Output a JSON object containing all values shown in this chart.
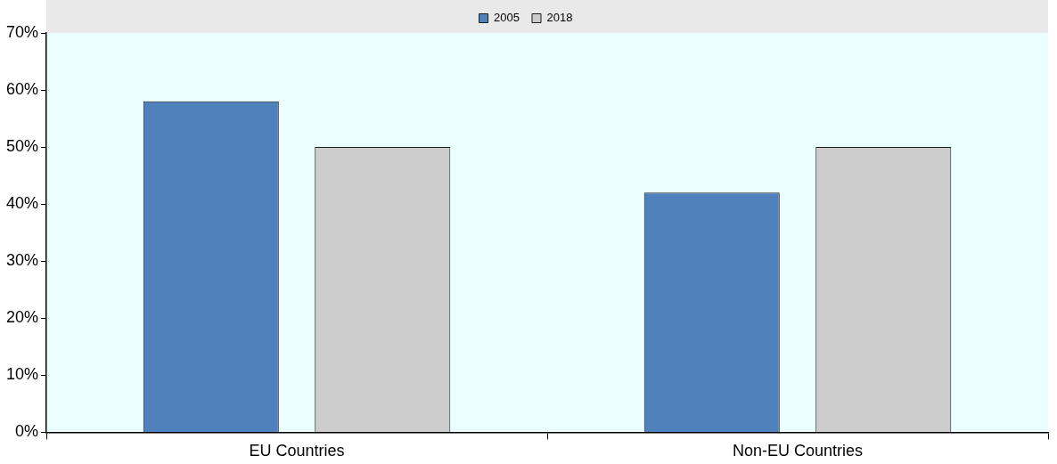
{
  "chart_data": {
    "type": "bar",
    "categories": [
      "EU Countries",
      "Non-EU Countries"
    ],
    "series": [
      {
        "name": "2005",
        "color": "#4f81bd",
        "values": [
          58,
          42
        ]
      },
      {
        "name": "2018",
        "color": "#cccccc",
        "values": [
          50,
          50
        ]
      }
    ],
    "ylim": [
      0,
      70
    ],
    "yticks": [
      {
        "value": 0,
        "label": "0%"
      },
      {
        "value": 10,
        "label": "10%"
      },
      {
        "value": 20,
        "label": "20%"
      },
      {
        "value": 30,
        "label": "30%"
      },
      {
        "value": 40,
        "label": "40%"
      },
      {
        "value": 50,
        "label": "50%"
      },
      {
        "value": 60,
        "label": "60%"
      },
      {
        "value": 70,
        "label": "70%"
      }
    ],
    "grid": false,
    "legend": "top"
  }
}
